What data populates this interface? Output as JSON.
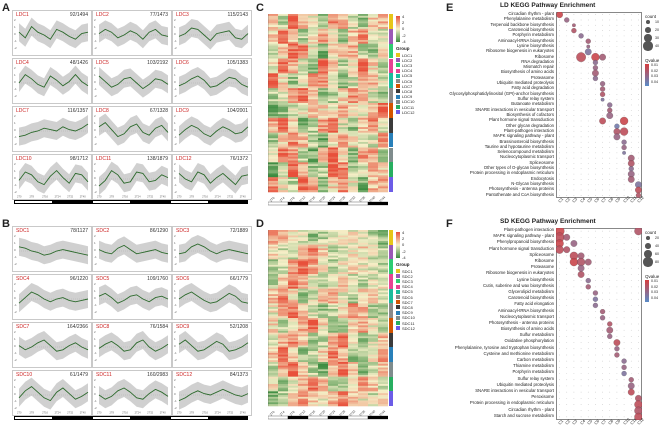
{
  "panels": {
    "A": "A",
    "B": "B",
    "C": "C",
    "D": "D",
    "E": "E",
    "F": "F"
  },
  "colors": {
    "ldc_label": "#cc2222",
    "sdc_label": "#cc2222",
    "line": "#2d6a2d",
    "band": "#c8c8c8",
    "heat_high": "#e8503b",
    "heat_mid": "#f5f0c8",
    "heat_low": "#3a8b3f"
  },
  "ldc_clusters": [
    {
      "name": "LDC1",
      "count": "92/1494",
      "shape": [
        0.2,
        -0.2,
        0.6,
        0.2,
        0.0,
        -0.3,
        0.4,
        0.2,
        -0.1,
        -0.3,
        0.1,
        0.2
      ]
    },
    {
      "name": "LDC2",
      "count": "77/1473",
      "shape": [
        0.1,
        0.4,
        0.2,
        -0.2,
        0.0,
        0.3,
        0.1,
        -0.3,
        0.2,
        0.4,
        0.0,
        -0.1
      ]
    },
    {
      "name": "LDC3",
      "count": "115/2143",
      "shape": [
        -0.1,
        0.1,
        0.5,
        0.4,
        0.0,
        -0.4,
        0.1,
        0.2,
        0.3,
        -0.2,
        -0.3,
        0.1
      ]
    },
    {
      "name": "LDC4",
      "count": "48/1426",
      "shape": [
        0.0,
        0.6,
        0.3,
        -0.1,
        -0.3,
        0.5,
        0.2,
        -0.2,
        0.1,
        0.6,
        0.1,
        -0.2
      ]
    },
    {
      "name": "LDC5",
      "count": "103/2192",
      "shape": [
        0.5,
        0.1,
        -0.3,
        -0.1,
        0.3,
        0.4,
        0.0,
        -0.4,
        -0.1,
        0.3,
        0.2,
        -0.1
      ]
    },
    {
      "name": "LDC6",
      "count": "105/1383",
      "shape": [
        -0.2,
        0.0,
        0.3,
        0.5,
        0.2,
        -0.3,
        -0.2,
        0.1,
        0.4,
        0.3,
        -0.1,
        -0.3
      ]
    },
    {
      "name": "LDC7",
      "count": "116/1357",
      "shape": [
        -0.4,
        -0.3,
        -0.1,
        0.0,
        0.2,
        0.1,
        0.0,
        0.3,
        0.1,
        0.0,
        0.2,
        0.5
      ]
    },
    {
      "name": "LDC8",
      "count": "67/1328",
      "shape": [
        0.3,
        0.6,
        0.1,
        -0.4,
        -0.2,
        0.3,
        0.5,
        -0.1,
        -0.3,
        0.2,
        0.4,
        -0.1
      ]
    },
    {
      "name": "LDC9",
      "count": "104/2001",
      "shape": [
        -0.3,
        0.1,
        0.4,
        0.2,
        -0.2,
        -0.4,
        0.0,
        0.3,
        0.1,
        -0.2,
        -0.1,
        0.3
      ]
    },
    {
      "name": "LDC10",
      "count": "98/1712",
      "shape": [
        -0.1,
        0.5,
        0.3,
        -0.2,
        -0.4,
        0.2,
        0.6,
        0.1,
        -0.3,
        0.4,
        0.3,
        -0.2
      ]
    },
    {
      "name": "LDC11",
      "count": "138/1879",
      "shape": [
        -0.5,
        -0.1,
        0.6,
        0.3,
        -0.3,
        -0.2,
        0.5,
        0.4,
        -0.2,
        -0.1,
        0.3,
        0.1
      ]
    },
    {
      "name": "LDC12",
      "count": "76/1372",
      "shape": [
        0.4,
        0.0,
        -0.2,
        0.5,
        0.3,
        -0.3,
        0.1,
        0.4,
        0.0,
        -0.4,
        0.2,
        0.3
      ]
    }
  ],
  "sdc_clusters": [
    {
      "name": "SDC1",
      "count": "78/1127",
      "shape": [
        0.3,
        0.2,
        0.0,
        -0.1,
        -0.3,
        -0.2,
        0.0,
        0.1,
        0.0,
        -0.1,
        -0.2,
        -0.3
      ]
    },
    {
      "name": "SDC2",
      "count": "86/1290",
      "shape": [
        0.1,
        -0.1,
        -0.2,
        0.2,
        0.4,
        0.1,
        -0.2,
        -0.1,
        0.0,
        0.1,
        -0.1,
        -0.2
      ]
    },
    {
      "name": "SDC3",
      "count": "72/1889",
      "shape": [
        -0.2,
        -0.1,
        0.3,
        0.5,
        0.3,
        0.0,
        -0.2,
        0.0,
        0.1,
        0.0,
        -0.1,
        -0.2
      ]
    },
    {
      "name": "SDC4",
      "count": "96/1220",
      "shape": [
        -0.3,
        0.1,
        0.5,
        0.3,
        0.0,
        -0.2,
        0.0,
        0.1,
        -0.1,
        -0.2,
        -0.1,
        0.0
      ]
    },
    {
      "name": "SDC5",
      "count": "109/1760",
      "shape": [
        0.2,
        0.4,
        0.1,
        -0.3,
        -0.1,
        0.2,
        0.3,
        0.0,
        -0.2,
        0.1,
        0.2,
        0.0
      ]
    },
    {
      "name": "SDC6",
      "count": "66/1779",
      "shape": [
        0.0,
        0.3,
        0.5,
        0.2,
        -0.1,
        -0.3,
        -0.2,
        0.1,
        0.4,
        0.2,
        -0.2,
        -0.3
      ]
    },
    {
      "name": "SDC7",
      "count": "164/2366",
      "shape": [
        0.1,
        -0.2,
        0.0,
        0.3,
        0.5,
        0.1,
        -0.3,
        -0.2,
        0.1,
        0.3,
        0.0,
        -0.2
      ]
    },
    {
      "name": "SDC8",
      "count": "76/1584",
      "shape": [
        -0.1,
        0.2,
        0.4,
        0.1,
        -0.3,
        -0.2,
        0.3,
        0.5,
        0.0,
        -0.3,
        -0.1,
        0.2
      ]
    },
    {
      "name": "SDC9",
      "count": "52/1208",
      "shape": [
        0.2,
        0.5,
        0.1,
        -0.3,
        -0.2,
        0.1,
        0.4,
        0.2,
        -0.3,
        -0.2,
        0.0,
        0.3
      ]
    },
    {
      "name": "SDC10",
      "count": "61/1479",
      "shape": [
        -0.2,
        0.3,
        0.6,
        0.2,
        -0.2,
        -0.4,
        0.2,
        0.5,
        0.1,
        -0.3,
        -0.1,
        0.2
      ]
    },
    {
      "name": "SDC11",
      "count": "160/2983",
      "shape": [
        0.0,
        -0.3,
        -0.1,
        0.3,
        0.5,
        0.2,
        -0.2,
        -0.3,
        0.1,
        0.4,
        0.2,
        -0.1
      ]
    },
    {
      "name": "SDC12",
      "count": "84/1373",
      "shape": [
        -0.4,
        -0.2,
        0.1,
        0.3,
        0.1,
        0.0,
        0.2,
        0.4,
        0.2,
        0.0,
        -0.1,
        0.1
      ]
    }
  ],
  "time_ticks": [
    "2T0",
    "2T4",
    "2T8",
    "2T12",
    "2T16",
    "2T20",
    "2T24",
    "2T28",
    "2T32",
    "2T36",
    "2T40",
    "2T44"
  ],
  "y_ticks": [
    "2",
    "1",
    "0",
    "-1",
    "-2"
  ],
  "heatmap": {
    "scale_ticks": [
      "4",
      "2",
      "0",
      "-2",
      "-4"
    ],
    "group_label": "Group",
    "ld_groups": [
      "LDC1",
      "LDC2",
      "LDC3",
      "LDC4",
      "LDC5",
      "LDC6",
      "LDC7",
      "LDC8",
      "LDC9",
      "LDC10",
      "LDC11",
      "LDC12"
    ],
    "sd_groups": [
      "SDC1",
      "SDC2",
      "SDC3",
      "SDC4",
      "SDC5",
      "SDC6",
      "SDC7",
      "SDC8",
      "SDC9",
      "SDC10",
      "SDC11",
      "SDC12"
    ],
    "group_colors": [
      "#e6c619",
      "#9b59b6",
      "#2ecc71",
      "#e84393",
      "#1abc9c",
      "#8a8a8a",
      "#d35400",
      "#3b3b3b",
      "#2980b9",
      "#7f8c8d",
      "#27ae60",
      "#6c5ce7"
    ],
    "col_labels": [
      "2T0",
      "2T4",
      "2T8",
      "2T12",
      "2T16",
      "2T20",
      "2T24",
      "2T28",
      "2T32",
      "2T36",
      "2T40",
      "2T44"
    ]
  },
  "ld_kegg": {
    "title": "LD KEGG Pathway Enrichment",
    "legend": {
      "count_label": "count",
      "count_values": [
        "10",
        "20",
        "30",
        "40"
      ],
      "qvalue_label": "Qvalue",
      "qvalue_values": [
        "0.01",
        "0.02",
        "0.03",
        "0.04"
      ]
    },
    "clusters": [
      "C1",
      "C2",
      "C3",
      "C4",
      "C5",
      "C6",
      "C7",
      "C8",
      "C9",
      "C10",
      "C11",
      "C12"
    ],
    "pathways": [
      "Circadian rhythm - plant",
      "Phenylalanine metabolism",
      "Terpenoid backbone biosynthesis",
      "Carotenoid biosynthesis",
      "Porphyrin metabolism",
      "Aminoacyl-tRNA biosynthesis",
      "Lysine biosynthesis",
      "Ribosome biogenesis in eukaryotes",
      "Ribosome",
      "RNA degradation",
      "Mismatch repair",
      "Biosynthesis of amino acids",
      "Proteasome",
      "Ubiquitin mediated proteolysis",
      "Fatty acid degradation",
      "Glycosylphosphatidylinositol (GPI)-anchor biosynthesis",
      "Sulfur relay system",
      "Butanoate metabolism",
      "SNARE interactions in vesicular transport",
      "Biosynthesis of cofactors",
      "Plant hormone signal transduction",
      "Other glycan degradation",
      "Plant-pathogen interaction",
      "MAPK signaling pathway - plant",
      "Brassinosteroid biosynthesis",
      "Taurine and hypotaurine metabolism",
      "Selenocompound metabolism",
      "Nucleocytoplasmic transport",
      "Spliceosome",
      "Other types of O-glycan biosynthesis",
      "Protein processing in endoplasmic reticulum",
      "Endocytosis",
      "N-Glycan biosynthesis",
      "Photosynthesis - antenna proteins",
      "Pantothenate and CoA biosynthesis"
    ],
    "dots": [
      [
        0,
        0,
        3,
        0.9
      ],
      [
        1,
        1,
        2,
        0.5
      ],
      [
        2,
        2,
        1,
        0.6
      ],
      [
        3,
        2,
        2,
        0.7
      ],
      [
        4,
        3,
        2,
        0.4
      ],
      [
        5,
        4,
        2,
        0.6
      ],
      [
        6,
        4,
        1,
        0.5
      ],
      [
        7,
        4,
        3,
        0.3
      ],
      [
        8,
        3,
        5,
        0.8
      ],
      [
        8,
        5,
        4,
        0.9
      ],
      [
        8,
        6,
        3,
        0.6
      ],
      [
        9,
        5,
        2,
        0.4
      ],
      [
        10,
        5,
        2,
        0.5
      ],
      [
        11,
        5,
        3,
        0.6
      ],
      [
        12,
        5,
        2,
        0.4
      ],
      [
        13,
        6,
        2,
        0.5
      ],
      [
        14,
        6,
        2,
        0.6
      ],
      [
        15,
        6,
        2,
        0.7
      ],
      [
        16,
        6,
        1,
        0.3
      ],
      [
        17,
        7,
        2,
        0.4
      ],
      [
        18,
        7,
        2,
        0.6
      ],
      [
        19,
        7,
        3,
        0.5
      ],
      [
        20,
        6,
        3,
        0.8
      ],
      [
        20,
        9,
        4,
        0.9
      ],
      [
        21,
        8,
        2,
        0.2
      ],
      [
        22,
        8,
        3,
        0.7
      ],
      [
        22,
        9,
        4,
        0.8
      ],
      [
        23,
        8,
        3,
        0.5
      ],
      [
        24,
        9,
        2,
        0.4
      ],
      [
        25,
        9,
        2,
        0.5
      ],
      [
        26,
        9,
        1,
        0.3
      ],
      [
        27,
        10,
        3,
        0.6
      ],
      [
        28,
        10,
        3,
        0.7
      ],
      [
        29,
        10,
        2,
        0.4
      ],
      [
        30,
        10,
        3,
        0.5
      ],
      [
        31,
        10,
        3,
        0.6
      ],
      [
        32,
        11,
        3,
        0.3
      ],
      [
        33,
        11,
        3,
        0.8
      ],
      [
        34,
        11,
        2,
        0.7
      ]
    ]
  },
  "sd_kegg": {
    "title": "SD KEGG Pathway Enrichment",
    "legend": {
      "count_label": "count",
      "count_values": [
        "20",
        "40",
        "60",
        "80"
      ],
      "qvalue_label": "Qvalue",
      "qvalue_values": [
        "0.01",
        "0.02",
        "0.03",
        "0.04"
      ]
    },
    "clusters": [
      "C1",
      "C2",
      "C3",
      "C4",
      "C5",
      "C6",
      "C7",
      "C8",
      "C9",
      "C10",
      "C11",
      "C12"
    ],
    "pathways": [
      "Plant-pathogen interaction",
      "MAPK signaling pathway - plant",
      "Phenylpropanoid biosynthesis",
      "Plant hormone signal transduction",
      "Spliceosome",
      "Ribosome",
      "Proteasome",
      "Ribosome biogenesis in eukaryotes",
      "Lysine biosynthesis",
      "Cutin, suberine and wax biosynthesis",
      "Glycerolipid metabolism",
      "Carotenoid biosynthesis",
      "Fatty acid elongation",
      "Aminoacyl-tRNA biosynthesis",
      "Nucleocytoplasmic transport",
      "Photosynthesis - antenna proteins",
      "Biosynthesis of amino acids",
      "Sulfur metabolism",
      "Oxidative phosphorylation",
      "Phenylalanine, tyrosine and tryptophan biosynthesis",
      "Cysteine and methionine metabolism",
      "Carbon metabolism",
      "Thiamine metabolism",
      "Porphyrin metabolism",
      "Sulfur relay system",
      "Ubiquitin mediated proteolysis",
      "SNARE interactions in vesicular transport",
      "Peroxisome",
      "Protein processing in endoplasmic reticulum",
      "Circadian rhythm - plant",
      "Starch and sucrose metabolism"
    ],
    "dots": [
      [
        0,
        0,
        5,
        0.9
      ],
      [
        0,
        11,
        4,
        0.7
      ],
      [
        1,
        0,
        5,
        0.8
      ],
      [
        1,
        1,
        3,
        0.6
      ],
      [
        2,
        0,
        4,
        0.9
      ],
      [
        2,
        2,
        3,
        0.5
      ],
      [
        3,
        0,
        4,
        0.8
      ],
      [
        3,
        1,
        3,
        0.7
      ],
      [
        4,
        2,
        4,
        0.8
      ],
      [
        4,
        3,
        3,
        0.6
      ],
      [
        5,
        2,
        4,
        0.9
      ],
      [
        5,
        3,
        4,
        0.7
      ],
      [
        5,
        4,
        3,
        0.6
      ],
      [
        6,
        3,
        3,
        0.5
      ],
      [
        7,
        3,
        3,
        0.7
      ],
      [
        8,
        4,
        2,
        0.4
      ],
      [
        9,
        4,
        2,
        0.6
      ],
      [
        10,
        5,
        2,
        0.5
      ],
      [
        11,
        5,
        2,
        0.3
      ],
      [
        12,
        5,
        2,
        0.4
      ],
      [
        13,
        6,
        2,
        0.6
      ],
      [
        14,
        6,
        2,
        0.5
      ],
      [
        15,
        7,
        2,
        0.7
      ],
      [
        16,
        7,
        3,
        0.6
      ],
      [
        17,
        7,
        2,
        0.5
      ],
      [
        18,
        8,
        3,
        0.8
      ],
      [
        19,
        8,
        2,
        0.5
      ],
      [
        20,
        8,
        2,
        0.6
      ],
      [
        21,
        9,
        2,
        0.4
      ],
      [
        22,
        9,
        2,
        0.5
      ],
      [
        23,
        9,
        2,
        0.3
      ],
      [
        24,
        10,
        2,
        0.6
      ],
      [
        25,
        10,
        3,
        0.5
      ],
      [
        26,
        10,
        3,
        0.8
      ],
      [
        27,
        11,
        3,
        0.7
      ],
      [
        28,
        11,
        4,
        0.8
      ],
      [
        29,
        11,
        4,
        0.7
      ],
      [
        30,
        11,
        4,
        0.8
      ]
    ]
  }
}
